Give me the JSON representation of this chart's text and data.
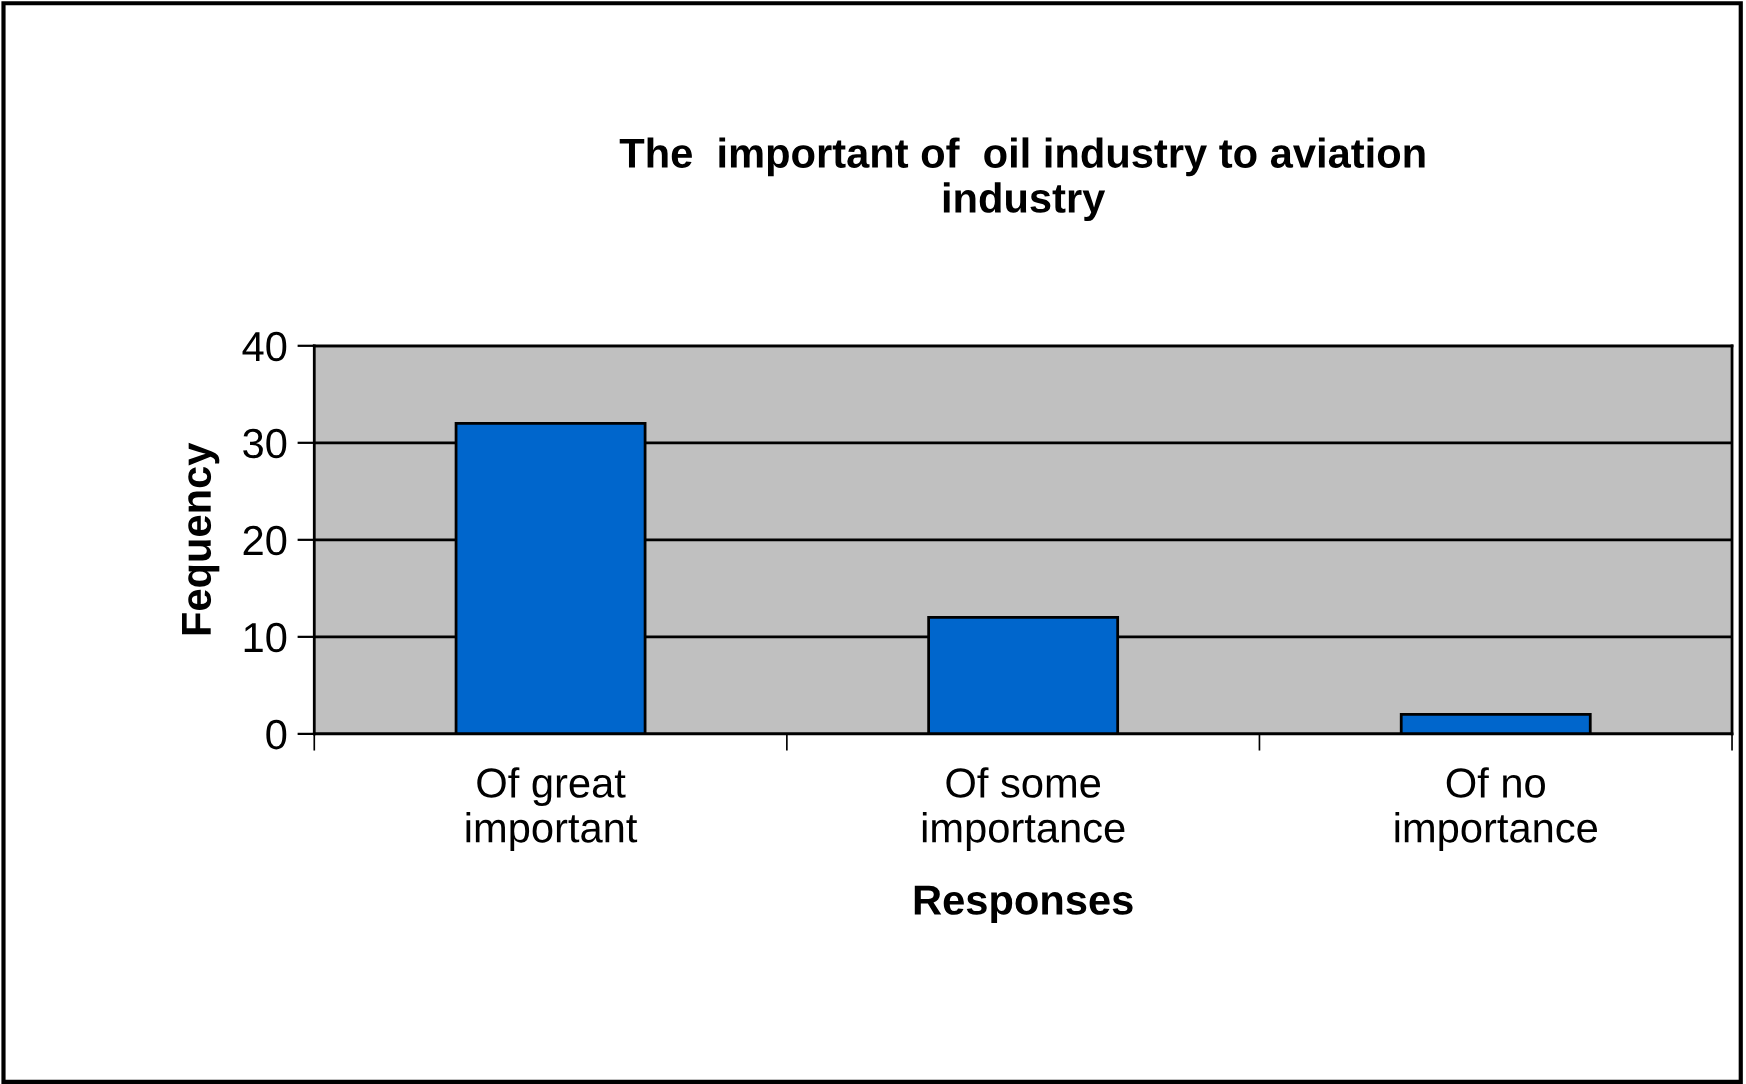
{
  "chart_data": {
    "type": "bar",
    "title": "The  important of  oil industry to aviation\nindustry",
    "xlabel": "Responses",
    "ylabel": "Fequency",
    "categories": [
      "Of great\nimportant",
      "Of some\nimportance",
      "Of no\nimportance"
    ],
    "values": [
      32,
      12,
      2
    ],
    "color": "#0066cc",
    "ylim": [
      0,
      40
    ],
    "yticks": [
      0,
      10,
      20,
      30,
      40
    ],
    "grid": "y"
  }
}
